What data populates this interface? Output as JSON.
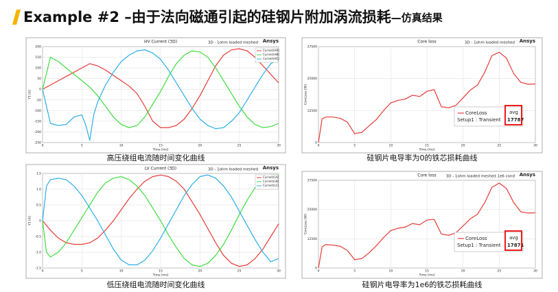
{
  "title": "Example #2 –由于法向磁通引起的硅钢片附加涡流损耗",
  "title_suffix": "—仿真结果",
  "captions": [
    "高压绕组电流随时间变化曲线",
    "硅钢片电导率为0的铁芯损耗曲线",
    "低压绕组电流随时间变化曲线",
    "硅钢片电导率为1e6的铁芯损耗曲线"
  ],
  "chart_data": [
    {
      "type": "line",
      "title": "HV Current (3D)",
      "subtitle": "3D - 1ohm loaded meshed",
      "brand": "Ansys",
      "x_label": "Time [ms]",
      "y_label": "Y1 [A]",
      "grid": true,
      "legend_position": "top-right",
      "x": [
        0,
        1,
        2,
        3,
        4,
        5,
        5.5,
        6,
        6.5,
        7,
        8,
        9,
        10,
        11,
        12,
        13,
        14,
        15,
        16,
        17,
        18,
        19,
        20,
        21,
        22,
        23,
        24,
        25,
        26,
        27,
        28,
        29,
        30
      ],
      "xlim": [
        0,
        30
      ],
      "xticks": [
        0,
        5,
        10,
        15,
        20,
        25,
        30
      ],
      "ylim": [
        -250,
        200
      ],
      "yticks": [
        -250,
        -200,
        -150,
        -100,
        -50,
        0,
        50,
        100,
        150,
        200
      ],
      "series": [
        {
          "name": "Current(HA)",
          "color": "#e53935",
          "values": [
            0,
            20,
            40,
            60,
            80,
            100,
            110,
            120,
            115,
            110,
            90,
            65,
            40,
            15,
            -20,
            -80,
            -150,
            -180,
            -180,
            -170,
            -140,
            -90,
            -30,
            40,
            110,
            160,
            185,
            190,
            180,
            150,
            110,
            70,
            30
          ]
        },
        {
          "name": "Current(HB)",
          "color": "#3ddc3d",
          "values": [
            0,
            150,
            130,
            100,
            70,
            40,
            25,
            10,
            -10,
            -30,
            -80,
            -130,
            -165,
            -180,
            -170,
            -130,
            -70,
            -10,
            60,
            120,
            160,
            180,
            175,
            150,
            100,
            40,
            -20,
            -80,
            -130,
            -165,
            -180,
            -175,
            -160
          ]
        },
        {
          "name": "Current(HC)",
          "color": "#29aee8",
          "values": [
            0,
            -160,
            -170,
            -165,
            -130,
            -120,
            -170,
            -240,
            -120,
            -60,
            20,
            80,
            130,
            160,
            180,
            185,
            170,
            140,
            90,
            30,
            -30,
            -90,
            -140,
            -170,
            -185,
            -180,
            -150,
            -110,
            -50,
            10,
            70,
            120,
            140
          ]
        }
      ]
    },
    {
      "type": "line",
      "title": "Core loss",
      "subtitle": "3D - 1ohm loaded meshed",
      "brand": "Ansys",
      "x_label": "Time [ms]",
      "y_label": "CoreLoss [W]",
      "grid": true,
      "legend_position": "bottom-right",
      "legend_setup": "Setup1 : Transient",
      "stat_label": "avg",
      "stat_value": 17787,
      "x": [
        0,
        0.5,
        1,
        2,
        3,
        4,
        5,
        6,
        7,
        8,
        9,
        10,
        11,
        12,
        13,
        14,
        15,
        16,
        17,
        18,
        19,
        20,
        21,
        22,
        23,
        24,
        25,
        26,
        27,
        28,
        29,
        30
      ],
      "xlim": [
        0,
        30
      ],
      "xticks": [
        0,
        5,
        10,
        15,
        20,
        25,
        30
      ],
      "ylim": [
        0,
        37500
      ],
      "yticks": [
        0,
        12500,
        25000,
        37500
      ],
      "series": [
        {
          "name": "CoreLoss",
          "color": "#e53935",
          "values": [
            0,
            9300,
            10000,
            10000,
            9500,
            8000,
            3500,
            4000,
            6500,
            9000,
            12500,
            15500,
            16500,
            17000,
            18500,
            18000,
            20000,
            20700,
            14000,
            13600,
            14500,
            17500,
            20500,
            22500,
            27500,
            34000,
            35300,
            33000,
            27000,
            23500,
            22800,
            22900
          ]
        }
      ]
    },
    {
      "type": "line",
      "title": "LV Current (3D)",
      "subtitle": "3D - 1ohm loaded meshed",
      "brand": "Ansys",
      "x_label": "Time [ms]",
      "y_label": "Y1 [A]",
      "grid": true,
      "legend_position": "top-right",
      "x": [
        0,
        0.5,
        1,
        2,
        3,
        4,
        5,
        6,
        7,
        8,
        9,
        10,
        11,
        12,
        13,
        14,
        15,
        16,
        17,
        18,
        19,
        20,
        21,
        22,
        23,
        24,
        25,
        26,
        27,
        28,
        29,
        30
      ],
      "xlim": [
        0,
        30
      ],
      "xticks": [
        0,
        5,
        10,
        15,
        20,
        25,
        30
      ],
      "ylim": [
        -1.5,
        1.5
      ],
      "yticks": [
        -1.5,
        {
          "value": -1,
          "label": "-1.0"
        },
        -0.5,
        0,
        0.5,
        {
          "value": 1,
          "label": "1.0"
        },
        1.5
      ],
      "series": [
        {
          "name": "Current(LA)",
          "color": "#e53935",
          "values": [
            0,
            -0.15,
            -0.3,
            -0.55,
            -0.7,
            -0.75,
            -0.75,
            -0.7,
            -0.55,
            -0.3,
            0,
            0.35,
            0.7,
            1.0,
            1.25,
            1.4,
            1.45,
            1.4,
            1.25,
            1.0,
            0.6,
            0.2,
            -0.25,
            -0.7,
            -1.1,
            -1.35,
            -1.45,
            -1.4,
            -1.2,
            -0.9,
            -0.5,
            -0.1
          ]
        },
        {
          "name": "Current(LB)",
          "color": "#3ddc3d",
          "values": [
            0,
            -1.0,
            -1.15,
            -1.0,
            -0.7,
            -0.3,
            0.1,
            0.5,
            0.9,
            1.2,
            1.35,
            1.4,
            1.3,
            1.1,
            0.8,
            0.4,
            0,
            -0.45,
            -0.85,
            -1.2,
            -1.4,
            -1.45,
            -1.35,
            -1.1,
            -0.75,
            -0.3,
            0.2,
            0.65,
            1.05,
            1.3,
            1.45,
            1.45
          ]
        },
        {
          "name": "Current(LC)",
          "color": "#29aee8",
          "values": [
            0,
            1.1,
            1.3,
            1.35,
            1.3,
            1.1,
            0.8,
            0.4,
            0,
            -0.45,
            -0.9,
            -1.25,
            -1.4,
            -1.4,
            -1.25,
            -0.95,
            -0.55,
            -0.1,
            0.35,
            0.8,
            1.15,
            1.4,
            1.45,
            1.35,
            1.1,
            0.75,
            0.3,
            -0.15,
            -0.6,
            -1.0,
            -1.3,
            -1.2
          ]
        }
      ]
    },
    {
      "type": "line",
      "title": "Core loss",
      "subtitle": "3D - 1ohm loaded meshed 1e6 cond",
      "brand": "Ansys",
      "x_label": "Time [ms]",
      "y_label": "CoreLoss [W]",
      "grid": true,
      "legend_position": "bottom-right",
      "legend_setup": "Setup1 : Transient",
      "stat_label": "avg",
      "stat_value": 17871,
      "x": [
        0,
        0.5,
        1,
        2,
        3,
        4,
        5,
        6,
        7,
        8,
        9,
        10,
        11,
        12,
        13,
        14,
        15,
        16,
        17,
        18,
        19,
        20,
        21,
        22,
        23,
        24,
        25,
        26,
        27,
        28,
        29,
        30
      ],
      "xlim": [
        0,
        30
      ],
      "xticks": [
        0,
        5,
        10,
        15,
        20,
        25,
        30
      ],
      "ylim": [
        0,
        37500
      ],
      "yticks": [
        0,
        12500,
        25000,
        37500
      ],
      "series": [
        {
          "name": "CoreLoss",
          "color": "#e53935",
          "values": [
            0,
            9000,
            10000,
            9800,
            9300,
            7500,
            3600,
            4000,
            6500,
            9500,
            13000,
            16000,
            17000,
            17500,
            19000,
            18500,
            20500,
            20800,
            14500,
            14000,
            15000,
            18000,
            21000,
            23000,
            28000,
            34500,
            36300,
            34000,
            28000,
            24000,
            23500,
            23600
          ]
        }
      ]
    }
  ]
}
